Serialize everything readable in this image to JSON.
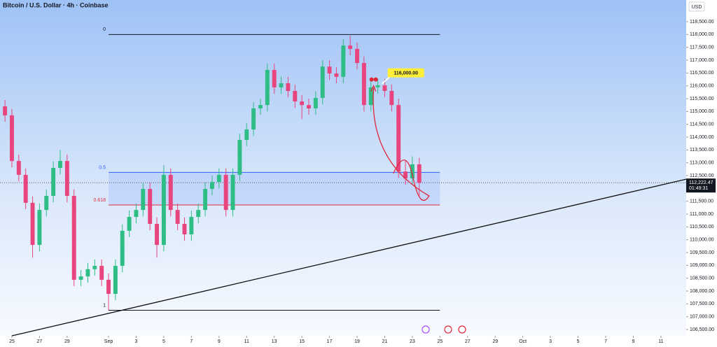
{
  "chart_data": {
    "type": "candlestick",
    "title": "Bitcoin / U.S. Dollar · 4h · Coinbase",
    "currency": "USD",
    "up_color": "#2ebd85",
    "down_color": "#e8457e",
    "x": [
      -0.5,
      0,
      0.5,
      1,
      1.5,
      2,
      2.5,
      3,
      3.5,
      4,
      4.5,
      5,
      5.5,
      6,
      6.5,
      7,
      7.5,
      8,
      8.5,
      9,
      9.5,
      10,
      10.5,
      11,
      11.5,
      12,
      12.5,
      13,
      13.5,
      14,
      14.5,
      15,
      15.5,
      16,
      16.5,
      17,
      17.5,
      18,
      18.5,
      19,
      19.5,
      20,
      20.5,
      21,
      21.5,
      22,
      22.5,
      23,
      23.5,
      24,
      24.5,
      25,
      25.5,
      26,
      26.5,
      27,
      27.5,
      28,
      28.5,
      29,
      29.5
    ],
    "open": [
      115200,
      114850,
      113070,
      112530,
      111440,
      109800,
      111160,
      111710,
      112800,
      113070,
      111710,
      108440,
      108570,
      108850,
      108980,
      108440,
      107890,
      108980,
      110350,
      110890,
      111160,
      111980,
      110620,
      109800,
      112530,
      111160,
      110620,
      110210,
      110890,
      111160,
      111980,
      112250,
      112530,
      111160,
      112530,
      113890,
      114300,
      115120,
      115250,
      116620,
      115940,
      116100,
      115800,
      115390,
      115250,
      115120,
      115530,
      116750,
      116480,
      116350,
      117570,
      117440,
      116890,
      115250,
      115940,
      116020,
      115800,
      115250,
      112660,
      112390,
      112940
    ],
    "high": [
      115450,
      115100,
      113320,
      112780,
      111690,
      111410,
      111960,
      113050,
      113500,
      113320,
      111960,
      108820,
      109100,
      109230,
      109230,
      108690,
      109230,
      110600,
      111140,
      111410,
      112230,
      112230,
      110870,
      112900,
      112780,
      111410,
      110870,
      111140,
      111410,
      112230,
      112500,
      112780,
      112780,
      112780,
      114140,
      114550,
      115370,
      115500,
      116870,
      116870,
      116350,
      116350,
      116050,
      115640,
      115500,
      115780,
      117000,
      117000,
      116730,
      117820,
      117950,
      117690,
      117140,
      116190,
      116270,
      116270,
      116050,
      115500,
      113100,
      113250,
      113190
    ],
    "low": [
      114600,
      112820,
      112280,
      111190,
      109300,
      109550,
      110910,
      111460,
      112550,
      111460,
      108190,
      108190,
      108320,
      108600,
      108190,
      107250,
      107640,
      108730,
      110100,
      110640,
      110910,
      110370,
      109300,
      109550,
      110910,
      110370,
      109960,
      109960,
      110640,
      110910,
      111730,
      112000,
      110910,
      110910,
      112280,
      113640,
      114050,
      114870,
      115000,
      115690,
      115690,
      115550,
      115140,
      114700,
      114870,
      114870,
      115280,
      116230,
      116100,
      116100,
      117190,
      116640,
      115000,
      115000,
      115690,
      115550,
      115000,
      112410,
      112140,
      112140,
      111700
    ],
    "close": [
      114850,
      113070,
      112530,
      111440,
      109800,
      111160,
      111710,
      112800,
      113070,
      111710,
      108440,
      108570,
      108850,
      108980,
      108440,
      107890,
      108980,
      110350,
      110890,
      111160,
      111980,
      110620,
      109800,
      112530,
      111160,
      110620,
      110210,
      110890,
      111160,
      111980,
      112250,
      112530,
      111160,
      112530,
      113890,
      114300,
      115120,
      115250,
      116620,
      115940,
      116100,
      115800,
      115390,
      115250,
      115120,
      115530,
      116750,
      116480,
      116350,
      117570,
      117440,
      116890,
      115250,
      115940,
      116020,
      115800,
      115250,
      112660,
      112390,
      112940,
      112220
    ],
    "xlim": [
      -0.86,
      48.83
    ],
    "ylim": [
      106255,
      119345
    ],
    "xticks": [
      {
        "value": 0,
        "label": "25"
      },
      {
        "value": 2,
        "label": "27"
      },
      {
        "value": 4,
        "label": "29"
      },
      {
        "value": 7,
        "label": "Sep"
      },
      {
        "value": 9,
        "label": "3"
      },
      {
        "value": 11,
        "label": "5"
      },
      {
        "value": 13,
        "label": "7"
      },
      {
        "value": 15,
        "label": "9"
      },
      {
        "value": 17,
        "label": "11"
      },
      {
        "value": 19,
        "label": "13"
      },
      {
        "value": 21,
        "label": "15"
      },
      {
        "value": 23,
        "label": "17"
      },
      {
        "value": 25,
        "label": "19"
      },
      {
        "value": 27,
        "label": "21"
      },
      {
        "value": 29,
        "label": "23"
      },
      {
        "value": 31,
        "label": "25"
      },
      {
        "value": 33,
        "label": "27"
      },
      {
        "value": 35,
        "label": "29"
      },
      {
        "value": 37,
        "label": "Oct"
      },
      {
        "value": 39,
        "label": "3"
      },
      {
        "value": 41,
        "label": "5"
      },
      {
        "value": 43,
        "label": "7"
      },
      {
        "value": 45,
        "label": "9"
      },
      {
        "value": 47,
        "label": "11"
      }
    ],
    "yticks": [
      {
        "value": 106500,
        "label": "106,500.00"
      },
      {
        "value": 107000,
        "label": "107,000.00"
      },
      {
        "value": 107500,
        "label": "107,500.00"
      },
      {
        "value": 108000,
        "label": "108,000.00"
      },
      {
        "value": 108500,
        "label": "108,500.00"
      },
      {
        "value": 109000,
        "label": "109,000.00"
      },
      {
        "value": 109500,
        "label": "109,500.00"
      },
      {
        "value": 110000,
        "label": "110,000.00"
      },
      {
        "value": 110500,
        "label": "110,500.00"
      },
      {
        "value": 111000,
        "label": "111,000.00"
      },
      {
        "value": 111500,
        "label": "111,500.00"
      },
      {
        "value": 112000,
        "label": "112,000.00"
      },
      {
        "value": 112500,
        "label": "112,500.00"
      },
      {
        "value": 113000,
        "label": "113,000.00"
      },
      {
        "value": 113500,
        "label": "113,500.00"
      },
      {
        "value": 114000,
        "label": "114,000.00"
      },
      {
        "value": 114500,
        "label": "114,500.00"
      },
      {
        "value": 115000,
        "label": "115,000.00"
      },
      {
        "value": 115500,
        "label": "115,500.00"
      },
      {
        "value": 116000,
        "label": "116,000.00"
      },
      {
        "value": 116500,
        "label": "116,500.00"
      },
      {
        "value": 117000,
        "label": "117,000.00"
      },
      {
        "value": 117500,
        "label": "117,500.00"
      },
      {
        "value": 118000,
        "label": "118,000.00"
      },
      {
        "value": 118500,
        "label": "118,500.00"
      }
    ],
    "fib": {
      "x": [
        7,
        31
      ],
      "levels": [
        {
          "label": "0",
          "value": 118000,
          "color": "#131722"
        },
        {
          "label": "0.5",
          "value": 112625,
          "color": "#2962ff"
        },
        {
          "label": "0.618",
          "value": 111356,
          "color": "#e0283d"
        },
        {
          "label": "1",
          "value": 107250,
          "color": "#131722"
        }
      ]
    },
    "trendline": {
      "x": [
        0,
        48.83
      ],
      "y": [
        106255,
        112360
      ]
    },
    "last_price": {
      "value": 112222.47,
      "label": "112,222.47",
      "countdown": "01:49:31"
    },
    "target": {
      "value": 116000,
      "label": "116,000.00",
      "x": 26.2
    }
  }
}
